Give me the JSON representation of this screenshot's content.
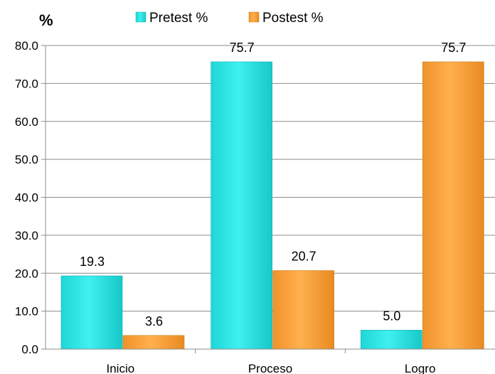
{
  "chart_data": {
    "type": "bar",
    "title": "",
    "xlabel": "",
    "ylabel": "%",
    "categories": [
      "Inicio",
      "Proceso",
      "Logro"
    ],
    "series": [
      {
        "name": "Pretest %",
        "values": [
          19.3,
          75.7,
          5.0
        ],
        "value_labels": [
          "19.3",
          "75.7",
          "5.0"
        ],
        "color": "#2EE8E8"
      },
      {
        "name": "Postest %",
        "values": [
          3.6,
          20.7,
          75.7
        ],
        "value_labels": [
          "3.6",
          "20.7",
          "75.7"
        ],
        "color": "#F9A23C"
      }
    ],
    "ylim": [
      0,
      80
    ],
    "yticks": [
      "0.0",
      "10.0",
      "20.0",
      "30.0",
      "40.0",
      "50.0",
      "60.0",
      "70.0",
      "80.0"
    ],
    "grid": true,
    "legend_position": "top"
  }
}
